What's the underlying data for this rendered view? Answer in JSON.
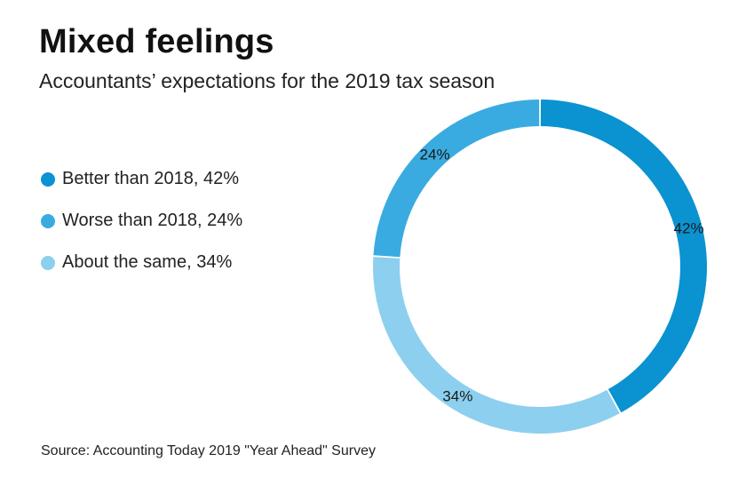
{
  "chart_data": {
    "type": "pie",
    "title": "Mixed feelings",
    "subtitle": "Accountants’ expectations for the 2019 tax season",
    "source": "Source: Accounting Today 2019 \"Year Ahead\" Survey",
    "legend_placement": "left",
    "donut": true,
    "slices": [
      {
        "name": "Better than 2018",
        "value": 42,
        "label": "42%",
        "legend": "Better than 2018, 42%",
        "color": "#0A92D1"
      },
      {
        "name": "About the same",
        "value": 34,
        "label": "34%",
        "legend": "About the same, 34%",
        "color": "#8DCFEE"
      },
      {
        "name": "Worse than 2018",
        "value": 24,
        "label": "24%",
        "legend": "Worse than 2018, 24%",
        "color": "#3AABE0"
      }
    ],
    "legend_order": [
      0,
      2,
      1
    ]
  }
}
